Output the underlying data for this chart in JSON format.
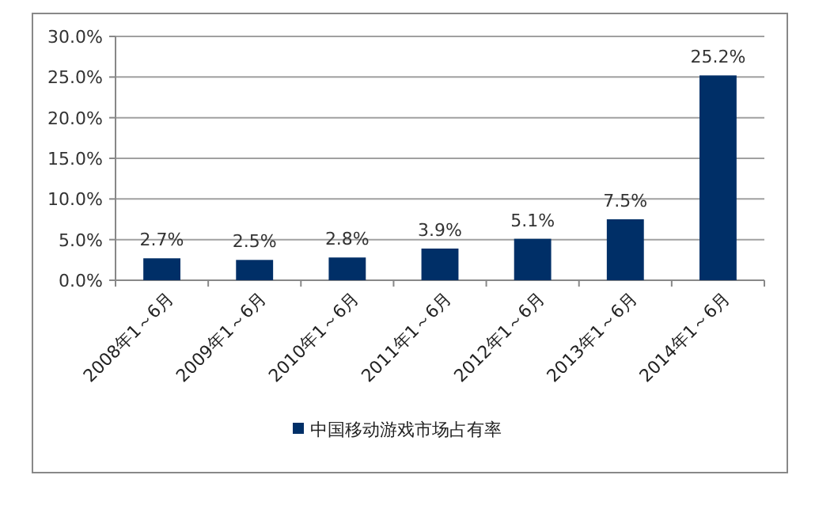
{
  "chart_data": {
    "type": "bar",
    "categories": [
      "2008年1～6月",
      "2009年1～6月",
      "2010年1～6月",
      "2011年1～6月",
      "2012年1～6月",
      "2013年1～6月",
      "2014年1～6月"
    ],
    "series": [
      {
        "name": "中国移动游戏市场占有率",
        "color": "#002f67",
        "values": [
          2.7,
          2.5,
          2.8,
          3.9,
          5.1,
          7.5,
          25.2
        ],
        "value_labels": [
          "2.7%",
          "2.5%",
          "2.8%",
          "3.9%",
          "5.1%",
          "7.5%",
          "25.2%"
        ]
      }
    ],
    "ylim": [
      0,
      30
    ],
    "yticks": [
      {
        "value": 0,
        "label": "0.0%"
      },
      {
        "value": 5,
        "label": "5.0%"
      },
      {
        "value": 10,
        "label": "10.0%"
      },
      {
        "value": 15,
        "label": "15.0%"
      },
      {
        "value": 20,
        "label": "20.0%"
      },
      {
        "value": 25,
        "label": "25.0%"
      },
      {
        "value": 30,
        "label": "30.0%"
      }
    ],
    "grid": "y",
    "legend": "bottom"
  }
}
